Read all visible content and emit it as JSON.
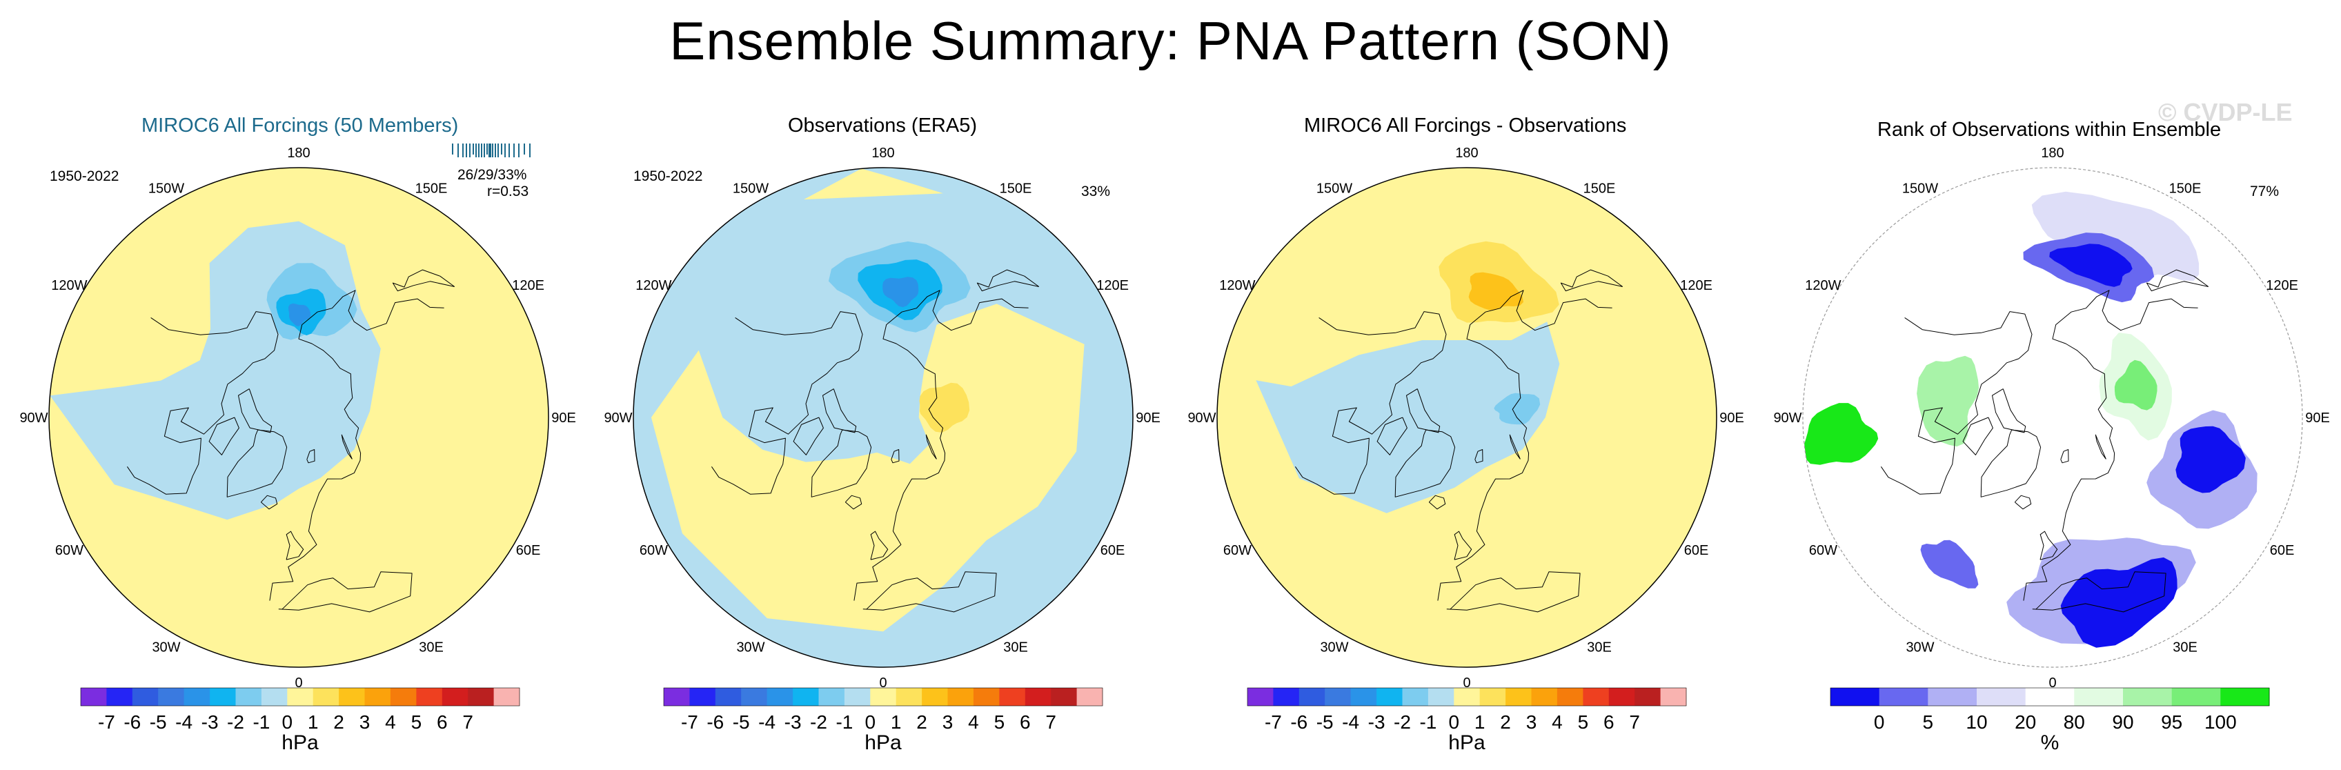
{
  "figure": {
    "title": "Ensemble Summary: PNA Pattern (SON)",
    "watermark": "© CVDP-LE"
  },
  "palettes": {
    "anomaly": [
      "#7b2de0",
      "#2525f5",
      "#2f5ce0",
      "#3a7ae0",
      "#2a93e8",
      "#10b4f0",
      "#7dccef",
      "#b4def0",
      "#fff59a",
      "#fde25c",
      "#fdc21a",
      "#fba20c",
      "#f57c0c",
      "#ee4020",
      "#d31e1e",
      "#ba2020",
      "#f9b3b0"
    ],
    "rank": [
      "#1010f0",
      "#6868f0",
      "#b0b0f4",
      "#dedef8",
      "#ffffff",
      "#e2fbe2",
      "#a8f3a8",
      "#78ee78",
      "#18e818"
    ]
  },
  "coastline_color": "#000000",
  "chart_data": [
    {
      "type": "heatmap",
      "projection": "polar-stereographic",
      "title": "MIROC6 All Forcings (50 Members)",
      "period": "1950-2022",
      "stats": [
        "26/29/33%",
        "r=0.53"
      ],
      "longitude_labels": [
        "180",
        "150E",
        "120E",
        "90E",
        "60E",
        "30E",
        "0",
        "30W",
        "60W",
        "90W",
        "120W",
        "150W"
      ],
      "colorbar": {
        "units": "hPa",
        "tick_labels": [
          "-7",
          "-6",
          "-5",
          "-4",
          "-3",
          "-2",
          "-1",
          "0",
          "1",
          "2",
          "3",
          "4",
          "5",
          "6",
          "7"
        ],
        "bins": 17
      },
      "features": [
        {
          "lon": 180,
          "lat": 62,
          "value": -3,
          "shape": "low-center"
        },
        {
          "lon": 10,
          "lat": 45,
          "value": 0.5,
          "shape": "broad-positive"
        }
      ]
    },
    {
      "type": "heatmap",
      "projection": "polar-stereographic",
      "title": "Observations (ERA5)",
      "period": "1950-2022",
      "stats": [
        "33%"
      ],
      "longitude_labels": [
        "180",
        "150E",
        "120E",
        "90E",
        "60E",
        "30E",
        "0",
        "30W",
        "60W",
        "90W",
        "120W",
        "150W"
      ],
      "colorbar": {
        "units": "hPa",
        "tick_labels": [
          "-7",
          "-6",
          "-5",
          "-4",
          "-3",
          "-2",
          "-1",
          "0",
          "1",
          "2",
          "3",
          "4",
          "5",
          "6",
          "7"
        ],
        "bins": 17
      },
      "features": [
        {
          "lon": 175,
          "lat": 55,
          "value": -3.5,
          "shape": "low-center"
        },
        {
          "lon": 100,
          "lat": 72,
          "value": 2,
          "shape": "high-center"
        }
      ]
    },
    {
      "type": "heatmap",
      "projection": "polar-stereographic",
      "title": "MIROC6 All Forcings - Observations",
      "period": "",
      "stats": [],
      "longitude_labels": [
        "180",
        "150E",
        "120E",
        "90E",
        "60E",
        "30E",
        "0",
        "30W",
        "60W",
        "90W",
        "120W",
        "150W"
      ],
      "colorbar": {
        "units": "hPa",
        "tick_labels": [
          "-7",
          "-6",
          "-5",
          "-4",
          "-3",
          "-2",
          "-1",
          "0",
          "1",
          "2",
          "3",
          "4",
          "5",
          "6",
          "7"
        ],
        "bins": 17
      },
      "features": [
        {
          "lon": 170,
          "lat": 52,
          "value": 3,
          "shape": "high-center"
        },
        {
          "lon": 100,
          "lat": 78,
          "value": -1,
          "shape": "low-center"
        }
      ]
    },
    {
      "type": "heatmap",
      "projection": "polar-stereographic",
      "title": "Rank of Observations within Ensemble",
      "period": "",
      "stats": [
        "77%"
      ],
      "longitude_labels": [
        "180",
        "150E",
        "120E",
        "90E",
        "60E",
        "30E",
        "0",
        "30W",
        "60W",
        "90W",
        "120W",
        "150W"
      ],
      "colorbar": {
        "units": "%",
        "tick_labels": [
          "0",
          "5",
          "10",
          "20",
          "80",
          "90",
          "95",
          "100"
        ],
        "bins": 9
      },
      "features": [
        {
          "lon": 165,
          "lat": 45,
          "value": 0,
          "shape": "low-rank"
        },
        {
          "lon": 70,
          "lat": 45,
          "value": 0,
          "shape": "low-rank"
        },
        {
          "lon": 10,
          "lat": 40,
          "value": 0,
          "shape": "low-rank"
        },
        {
          "lon": 110,
          "lat": 65,
          "value": 100,
          "shape": "high-rank"
        },
        {
          "lon": 275,
          "lat": 30,
          "value": 100,
          "shape": "high-rank"
        }
      ]
    }
  ]
}
